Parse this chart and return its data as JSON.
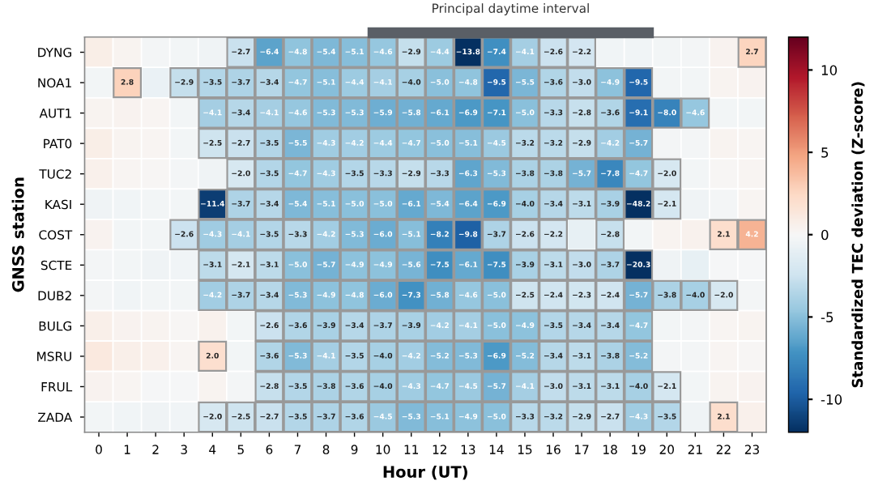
{
  "chart_data": {
    "type": "heatmap",
    "xlabel": "Hour (UT)",
    "ylabel": "GNSS station",
    "clabel": "Standardized TEC deviation (Z-score)",
    "categories": [
      "0",
      "1",
      "2",
      "3",
      "4",
      "5",
      "6",
      "7",
      "8",
      "9",
      "10",
      "11",
      "12",
      "13",
      "14",
      "15",
      "16",
      "17",
      "18",
      "19",
      "20",
      "21",
      "22",
      "23"
    ],
    "y_categories": [
      "DYNG",
      "NOA1",
      "AUT1",
      "PAT0",
      "TUC2",
      "KASI",
      "COST",
      "SCTE",
      "DUB2",
      "BULG",
      "MSRU",
      "FRUL",
      "ZADA"
    ],
    "cells": [
      [
        0.8,
        0.3,
        -0.2,
        -0.3,
        -0.5,
        -2.7,
        -6.4,
        -4.8,
        -5.4,
        -5.1,
        -4.6,
        -2.9,
        -4.4,
        -13.8,
        -7.4,
        -4.1,
        -2.6,
        -2.2,
        -0.4,
        -0.4,
        -0.3,
        -0.2,
        0.4,
        2.7
      ],
      [
        -0.3,
        2.8,
        -0.8,
        -2.9,
        -3.5,
        -3.7,
        -3.4,
        -4.7,
        -5.1,
        -4.4,
        -4.1,
        -4.0,
        -5.0,
        -4.8,
        -9.5,
        -5.5,
        -3.6,
        -3.0,
        -4.9,
        -9.5,
        -0.3,
        -0.3,
        0.3,
        0.4
      ],
      [
        0.3,
        0.4,
        0.2,
        -0.3,
        -4.1,
        -3.4,
        -4.1,
        -4.6,
        -5.3,
        -5.3,
        -5.9,
        -5.8,
        -6.1,
        -6.9,
        -7.1,
        -5.0,
        -3.3,
        -2.8,
        -3.6,
        -9.1,
        -8.0,
        -4.6,
        -0.3,
        -0.3
      ],
      [
        0.8,
        0.3,
        0.2,
        -0.3,
        -2.5,
        -2.7,
        -3.5,
        -5.5,
        -4.3,
        -4.2,
        -4.4,
        -4.7,
        -5.0,
        -5.1,
        -4.5,
        -3.2,
        -3.2,
        -2.9,
        -4.2,
        -5.7,
        -0.2,
        -0.2,
        0.3,
        0.2
      ],
      [
        0.6,
        0.2,
        0.1,
        -0.2,
        -0.5,
        -2.0,
        -3.5,
        -4.7,
        -4.3,
        -3.5,
        -3.3,
        -2.9,
        -3.3,
        -6.3,
        -5.3,
        -3.8,
        -3.8,
        -5.7,
        -7.8,
        -4.7,
        -2.0,
        -0.3,
        0.1,
        0.2
      ],
      [
        -0.5,
        -0.4,
        -0.3,
        -0.3,
        -11.4,
        -3.7,
        -3.4,
        -5.4,
        -5.1,
        -5.0,
        -5.0,
        -6.1,
        -5.4,
        -6.4,
        -6.9,
        -4.0,
        -3.4,
        -3.1,
        -3.9,
        -48.2,
        -2.1,
        -0.5,
        -0.2,
        0.2
      ],
      [
        0.4,
        -0.3,
        -0.3,
        -2.6,
        -4.3,
        -4.1,
        -3.5,
        -3.3,
        -4.2,
        -5.3,
        -6.0,
        -5.1,
        -8.2,
        -9.8,
        -3.7,
        -2.6,
        -2.2,
        -1.0,
        -2.8,
        -0.3,
        0.3,
        0.5,
        2.1,
        4.2
      ],
      [
        -0.2,
        -0.3,
        -0.5,
        -0.4,
        -3.1,
        -2.1,
        -3.1,
        -5.0,
        -5.7,
        -4.9,
        -4.9,
        -5.6,
        -7.5,
        -6.1,
        -7.5,
        -3.9,
        -3.1,
        -3.0,
        -3.7,
        -20.3,
        -0.5,
        -1.0,
        -0.1,
        -0.1
      ],
      [
        -0.2,
        -0.4,
        -0.3,
        -0.3,
        -4.2,
        -3.7,
        -3.4,
        -5.3,
        -4.9,
        -4.8,
        -6.0,
        -7.3,
        -5.8,
        -4.6,
        -5.0,
        -2.5,
        -2.4,
        -2.3,
        -2.4,
        -5.7,
        -3.8,
        -4.0,
        -2.0,
        -0.2
      ],
      [
        0.7,
        0.4,
        0.3,
        0.1,
        0.5,
        -0.3,
        -2.6,
        -3.6,
        -3.9,
        -3.4,
        -3.7,
        -3.9,
        -4.2,
        -4.1,
        -5.0,
        -4.9,
        -3.5,
        -3.4,
        -3.4,
        -4.7,
        -0.3,
        -0.2,
        0.2,
        0.3
      ],
      [
        1.2,
        0.7,
        0.6,
        0.2,
        2.0,
        -0.3,
        -3.6,
        -5.3,
        -4.1,
        -3.5,
        -4.0,
        -4.2,
        -5.2,
        -5.3,
        -6.9,
        -5.2,
        -3.4,
        -3.1,
        -3.8,
        -5.2,
        -0.2,
        -0.2,
        0.2,
        0.1
      ],
      [
        0.4,
        0.2,
        -0.1,
        -0.1,
        0.3,
        -0.2,
        -2.8,
        -3.5,
        -3.8,
        -3.6,
        -4.0,
        -4.3,
        -4.7,
        -4.5,
        -5.7,
        -4.1,
        -3.0,
        -3.1,
        -3.1,
        -4.0,
        -2.1,
        -0.3,
        0.3,
        0.4
      ],
      [
        -0.3,
        -0.4,
        -0.5,
        -0.4,
        -2.0,
        -2.5,
        -2.7,
        -3.5,
        -3.7,
        -3.6,
        -4.5,
        -5.3,
        -5.1,
        -4.9,
        -5.0,
        -3.3,
        -3.2,
        -2.9,
        -2.7,
        -4.3,
        -3.5,
        -0.5,
        2.1,
        0.6
      ]
    ],
    "cell_labels": [
      [
        null,
        null,
        null,
        null,
        null,
        "−2.7",
        "−6.4",
        "−4.8",
        "−5.4",
        "−5.1",
        "−4.6",
        "−2.9",
        "−4.4",
        "−13.8",
        "−7.4",
        "−4.1",
        "−2.6",
        "−2.2",
        null,
        null,
        null,
        null,
        null,
        "2.7"
      ],
      [
        null,
        "2.8",
        null,
        "−2.9",
        "−3.5",
        "−3.7",
        "−3.4",
        "−4.7",
        "−5.1",
        "−4.4",
        "−4.1",
        "−4.0",
        "−5.0",
        "−4.8",
        "−9.5",
        "−5.5",
        "−3.6",
        "−3.0",
        "−4.9",
        "−9.5",
        null,
        null,
        null,
        null
      ],
      [
        null,
        null,
        null,
        null,
        "−4.1",
        "−3.4",
        "−4.1",
        "−4.6",
        "−5.3",
        "−5.3",
        "−5.9",
        "−5.8",
        "−6.1",
        "−6.9",
        "−7.1",
        "−5.0",
        "−3.3",
        "−2.8",
        "−3.6",
        "−9.1",
        "−8.0",
        "−4.6",
        null,
        null
      ],
      [
        null,
        null,
        null,
        null,
        "−2.5",
        "−2.7",
        "−3.5",
        "−5.5",
        "−4.3",
        "−4.2",
        "−4.4",
        "−4.7",
        "−5.0",
        "−5.1",
        "−4.5",
        "−3.2",
        "−3.2",
        "−2.9",
        "−4.2",
        "−5.7",
        null,
        null,
        null,
        null
      ],
      [
        null,
        null,
        null,
        null,
        null,
        "−2.0",
        "−3.5",
        "−4.7",
        "−4.3",
        "−3.5",
        "−3.3",
        "−2.9",
        "−3.3",
        "−6.3",
        "−5.3",
        "−3.8",
        "−3.8",
        "−5.7",
        "−7.8",
        "−4.7",
        "−2.0",
        null,
        null,
        null
      ],
      [
        null,
        null,
        null,
        null,
        "−11.4",
        "−3.7",
        "−3.4",
        "−5.4",
        "−5.1",
        "−5.0",
        "−5.0",
        "−6.1",
        "−5.4",
        "−6.4",
        "−6.9",
        "−4.0",
        "−3.4",
        "−3.1",
        "−3.9",
        "−48.2",
        "−2.1",
        null,
        null,
        null
      ],
      [
        null,
        null,
        null,
        "−2.6",
        "−4.3",
        "−4.1",
        "−3.5",
        "−3.3",
        "−4.2",
        "−5.3",
        "−6.0",
        "−5.1",
        "−8.2",
        "−9.8",
        "−3.7",
        "−2.6",
        "−2.2",
        null,
        "−2.8",
        null,
        null,
        null,
        "2.1",
        "4.2"
      ],
      [
        null,
        null,
        null,
        null,
        "−3.1",
        "−2.1",
        "−3.1",
        "−5.0",
        "−5.7",
        "−4.9",
        "−4.9",
        "−5.6",
        "−7.5",
        "−6.1",
        "−7.5",
        "−3.9",
        "−3.1",
        "−3.0",
        "−3.7",
        "−20.3",
        null,
        null,
        null,
        null
      ],
      [
        null,
        null,
        null,
        null,
        "−4.2",
        "−3.7",
        "−3.4",
        "−5.3",
        "−4.9",
        "−4.8",
        "−6.0",
        "−7.3",
        "−5.8",
        "−4.6",
        "−5.0",
        "−2.5",
        "−2.4",
        "−2.3",
        "−2.4",
        "−5.7",
        "−3.8",
        "−4.0",
        "−2.0",
        null
      ],
      [
        null,
        null,
        null,
        null,
        null,
        null,
        "−2.6",
        "−3.6",
        "−3.9",
        "−3.4",
        "−3.7",
        "−3.9",
        "−4.2",
        "−4.1",
        "−5.0",
        "−4.9",
        "−3.5",
        "−3.4",
        "−3.4",
        "−4.7",
        null,
        null,
        null,
        null
      ],
      [
        null,
        null,
        null,
        null,
        "2.0",
        null,
        "−3.6",
        "−5.3",
        "−4.1",
        "−3.5",
        "−4.0",
        "−4.2",
        "−5.2",
        "−5.3",
        "−6.9",
        "−5.2",
        "−3.4",
        "−3.1",
        "−3.8",
        "−5.2",
        null,
        null,
        null,
        null
      ],
      [
        null,
        null,
        null,
        null,
        null,
        null,
        "−2.8",
        "−3.5",
        "−3.8",
        "−3.6",
        "−4.0",
        "−4.3",
        "−4.7",
        "−4.5",
        "−5.7",
        "−4.1",
        "−3.0",
        "−3.1",
        "−3.1",
        "−4.0",
        "−2.1",
        null,
        null,
        null
      ],
      [
        null,
        null,
        null,
        null,
        "−2.0",
        "−2.5",
        "−2.7",
        "−3.5",
        "−3.7",
        "−3.6",
        "−4.5",
        "−5.3",
        "−5.1",
        "−4.9",
        "−5.0",
        "−3.3",
        "−3.2",
        "−2.9",
        "−2.7",
        "−4.3",
        "−3.5",
        null,
        "2.1",
        null
      ]
    ],
    "clim": [
      -12,
      12
    ],
    "cticks": [
      -10,
      -5,
      0,
      5,
      10
    ],
    "annotations": [
      "Principal daytime interval"
    ]
  }
}
